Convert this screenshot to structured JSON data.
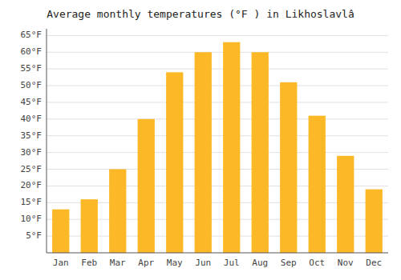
{
  "chart_data": {
    "type": "bar",
    "title": "Average monthly temperatures (°F ) in Likhoslavlâ",
    "categories": [
      "Jan",
      "Feb",
      "Mar",
      "Apr",
      "May",
      "Jun",
      "Jul",
      "Aug",
      "Sep",
      "Oct",
      "Nov",
      "Dec"
    ],
    "values": [
      13,
      16,
      25,
      40,
      54,
      60,
      63,
      60,
      51,
      41,
      29,
      19
    ],
    "color": "#FDB827",
    "ylim": [
      0,
      67
    ],
    "yticks": [
      {
        "value": 5,
        "label": "5°F"
      },
      {
        "value": 10,
        "label": "10°F"
      },
      {
        "value": 15,
        "label": "15°F"
      },
      {
        "value": 20,
        "label": "20°F"
      },
      {
        "value": 25,
        "label": "25°F"
      },
      {
        "value": 30,
        "label": "30°F"
      },
      {
        "value": 35,
        "label": "35°F"
      },
      {
        "value": 40,
        "label": "40°F"
      },
      {
        "value": 45,
        "label": "45°F"
      },
      {
        "value": 50,
        "label": "50°F"
      },
      {
        "value": 55,
        "label": "55°F"
      },
      {
        "value": 60,
        "label": "60°F"
      },
      {
        "value": 65,
        "label": "65°F"
      }
    ],
    "grid": true
  }
}
